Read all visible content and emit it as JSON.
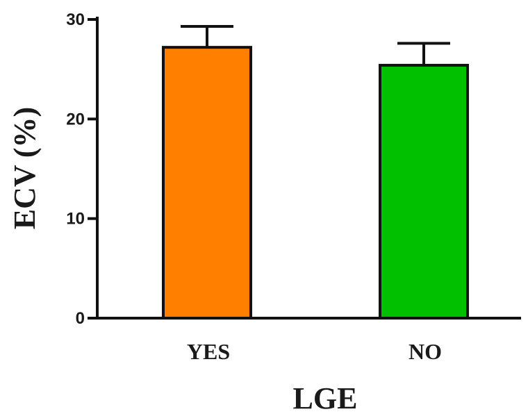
{
  "chart_data": {
    "type": "bar",
    "title": "",
    "xlabel": "LGE",
    "ylabel": "ECV (%)",
    "categories": [
      "YES",
      "NO"
    ],
    "values": [
      27.2,
      25.4
    ],
    "error_upper": [
      29.3,
      27.6
    ],
    "colors": [
      "#ff8000",
      "#00c000"
    ],
    "ylim": [
      0,
      30
    ],
    "yticks": [
      0,
      10,
      20,
      30
    ],
    "grid": false,
    "legend": "none"
  }
}
